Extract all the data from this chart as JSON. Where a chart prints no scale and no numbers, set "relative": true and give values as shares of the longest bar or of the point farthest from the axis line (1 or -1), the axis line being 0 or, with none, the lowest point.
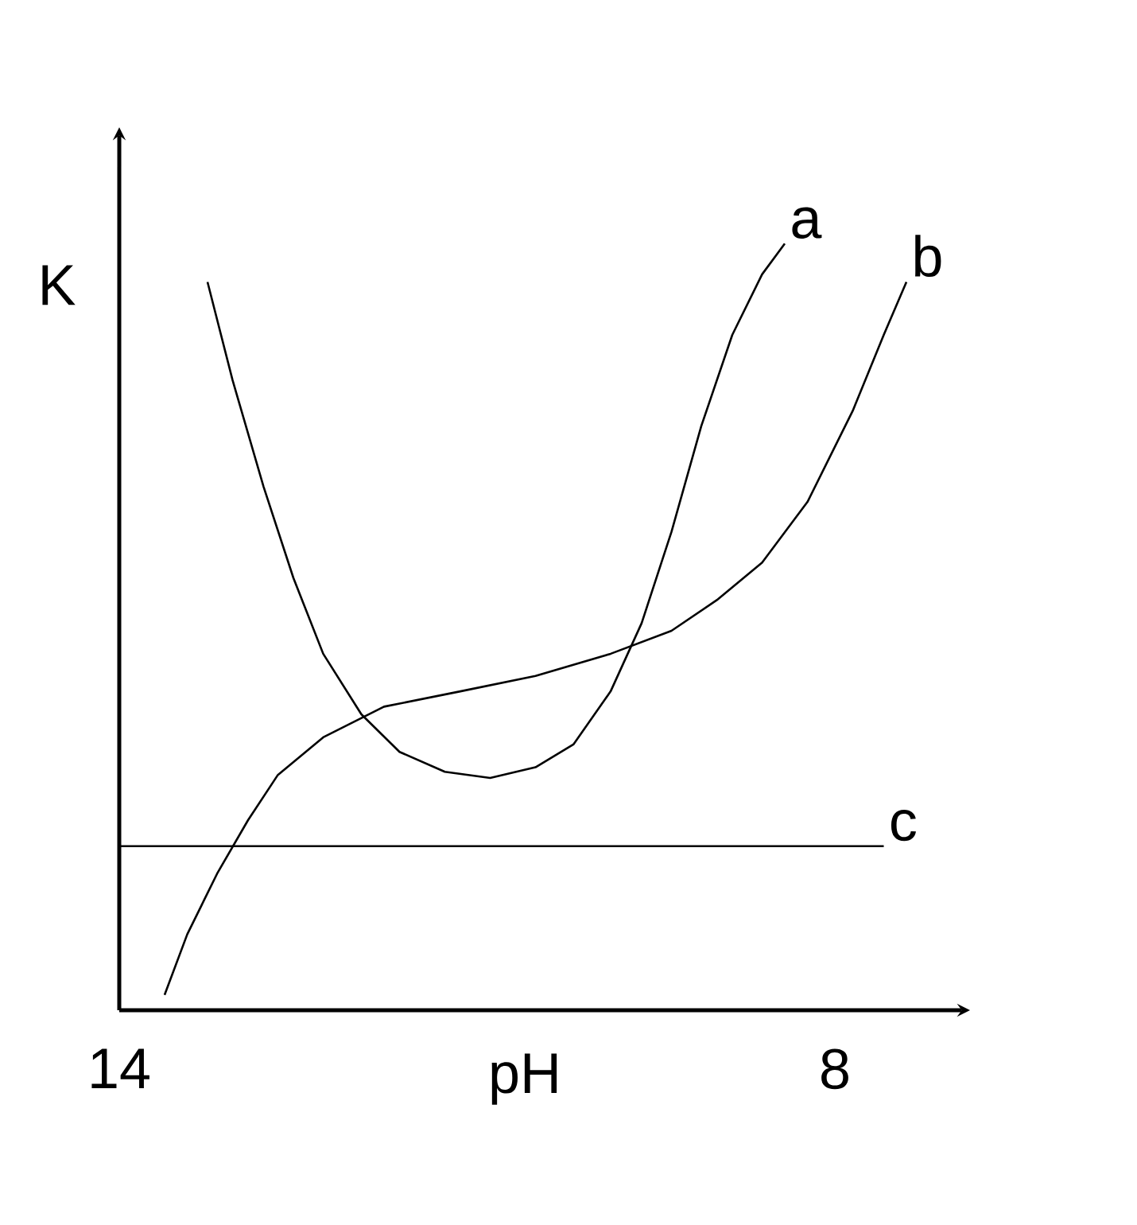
{
  "chart_data": {
    "type": "line",
    "xlabel": "pH",
    "ylabel": "K",
    "relative": true,
    "xlim": [
      14,
      7.2
    ],
    "xticks": [
      14,
      8
    ],
    "marker": "none",
    "line_style": "solid",
    "grid": false,
    "series": [
      {
        "name": "a",
        "color": "#000000",
        "x": [
          13.26,
          13.05,
          12.79,
          12.54,
          12.29,
          11.97,
          11.65,
          11.27,
          10.89,
          10.51,
          10.19,
          9.88,
          9.62,
          9.37,
          9.12,
          8.86,
          8.61,
          8.42
        ],
        "values": [
          0.95,
          0.822,
          0.683,
          0.564,
          0.465,
          0.386,
          0.337,
          0.311,
          0.303,
          0.317,
          0.347,
          0.416,
          0.505,
          0.624,
          0.762,
          0.881,
          0.96,
          1.0
        ]
      },
      {
        "name": "b",
        "color": "#000000",
        "x": [
          13.62,
          13.43,
          13.18,
          12.92,
          12.67,
          12.29,
          11.78,
          11.14,
          10.51,
          9.88,
          9.37,
          8.99,
          8.61,
          8.23,
          7.85,
          7.59,
          7.4
        ],
        "values": [
          0.02,
          0.099,
          0.178,
          0.248,
          0.307,
          0.356,
          0.396,
          0.416,
          0.436,
          0.465,
          0.495,
          0.535,
          0.584,
          0.663,
          0.782,
          0.881,
          0.95
        ]
      },
      {
        "name": "c",
        "color": "#000000",
        "x": [
          14,
          7.59
        ],
        "values": [
          0.214,
          0.214
        ]
      }
    ]
  }
}
